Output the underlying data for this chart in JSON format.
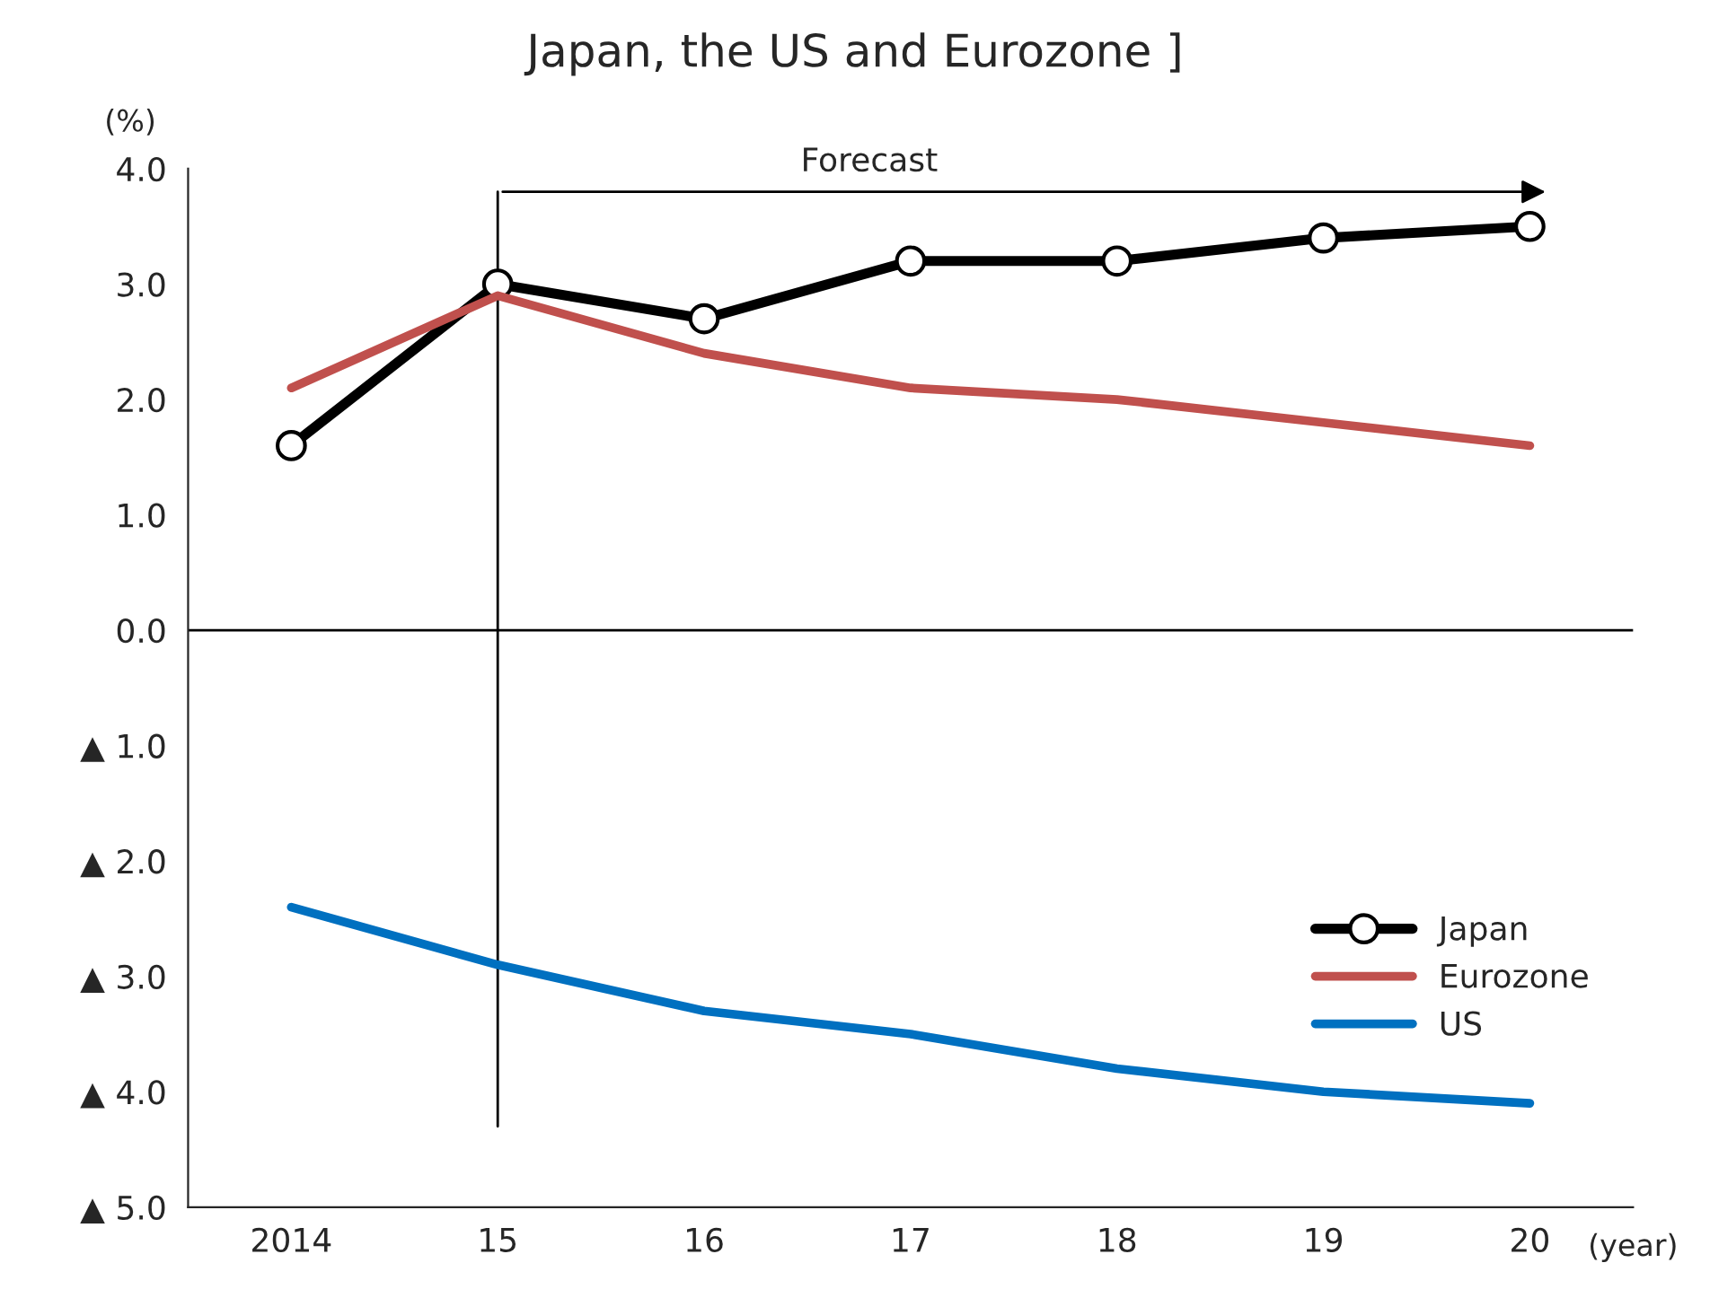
{
  "chart_data": {
    "type": "line",
    "title": "Japan, the US and Eurozone ]",
    "categories": [
      "2014",
      "15",
      "16",
      "17",
      "18",
      "19",
      "20"
    ],
    "series": [
      {
        "name": "Japan",
        "color": "#000000",
        "marker": "circle",
        "values": [
          1.6,
          3.0,
          2.7,
          3.2,
          3.2,
          3.4,
          3.5
        ]
      },
      {
        "name": "Eurozone",
        "color": "#c0504d",
        "marker": "none",
        "values": [
          2.1,
          2.9,
          2.4,
          2.1,
          2.0,
          1.8,
          1.6
        ]
      },
      {
        "name": "US",
        "color": "#0070c0",
        "marker": "none",
        "values": [
          -2.4,
          -2.9,
          -3.3,
          -3.5,
          -3.8,
          -4.0,
          -4.1
        ]
      }
    ],
    "ylabel": "(%)",
    "xlabel": "(year)",
    "ylim": [
      -5.0,
      4.0
    ],
    "yticks": [
      {
        "value": -5,
        "label": "▲ 5.0"
      },
      {
        "value": -4,
        "label": "▲ 4.0"
      },
      {
        "value": -3,
        "label": "▲ 3.0"
      },
      {
        "value": -2,
        "label": "▲ 2.0"
      },
      {
        "value": -1,
        "label": "▲ 1.0"
      },
      {
        "value": 0,
        "label": "0.0"
      },
      {
        "value": 1,
        "label": "1.0"
      },
      {
        "value": 2,
        "label": "2.0"
      },
      {
        "value": 3,
        "label": "3.0"
      },
      {
        "value": 4,
        "label": "4.0"
      }
    ],
    "ref_lines": [
      {
        "axis": "x",
        "value": "15",
        "color": "#000000"
      },
      {
        "axis": "y",
        "value": 0,
        "color": "#000000"
      }
    ],
    "annotations": [
      "Forecast"
    ],
    "grid": false,
    "legend": "center right"
  }
}
